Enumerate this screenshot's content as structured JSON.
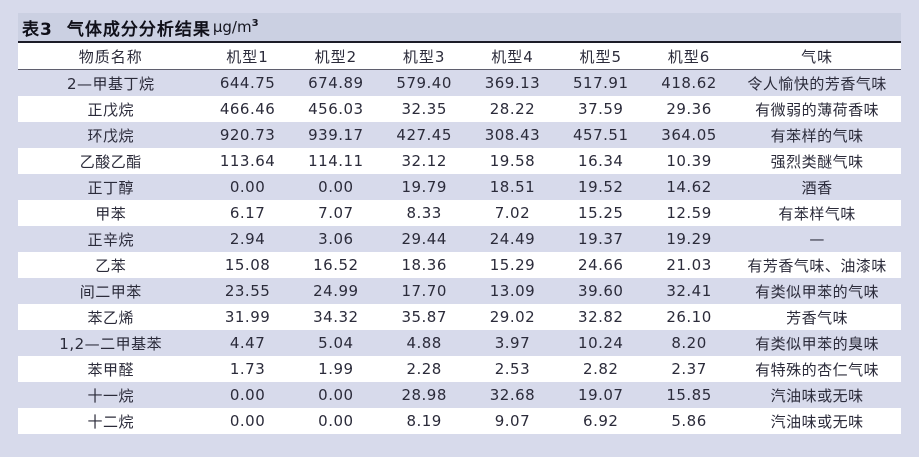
{
  "colors": {
    "page_background": "#d7daeb",
    "caption_band": "#cbd0e2",
    "row_stripe_lavender": "#d7daeb",
    "row_stripe_white": "#ffffff",
    "heavy_rule": "#1c1c28",
    "text": "#2b2b3a"
  },
  "table": {
    "caption": {
      "label": "表3",
      "title": "气体成分分析结果",
      "unit": "μg/m",
      "unit_sup": "3"
    },
    "columns": [
      "物质名称",
      "机型1",
      "机型2",
      "机型3",
      "机型4",
      "机型5",
      "机型6",
      "气味"
    ],
    "rows": [
      {
        "substance": "2—甲基丁烷",
        "values": [
          "644.75",
          "674.89",
          "579.40",
          "369.13",
          "517.91",
          "418.62"
        ],
        "odor": "令人愉快的芳香气味"
      },
      {
        "substance": "正戊烷",
        "values": [
          "466.46",
          "456.03",
          "32.35",
          "28.22",
          "37.59",
          "29.36"
        ],
        "odor": "有微弱的薄荷香味"
      },
      {
        "substance": "环戊烷",
        "values": [
          "920.73",
          "939.17",
          "427.45",
          "308.43",
          "457.51",
          "364.05"
        ],
        "odor": "有苯样的气味"
      },
      {
        "substance": "乙酸乙酯",
        "values": [
          "113.64",
          "114.11",
          "32.12",
          "19.58",
          "16.34",
          "10.39"
        ],
        "odor": "强烈类醚气味"
      },
      {
        "substance": "正丁醇",
        "values": [
          "0.00",
          "0.00",
          "19.79",
          "18.51",
          "19.52",
          "14.62"
        ],
        "odor": "酒香"
      },
      {
        "substance": "甲苯",
        "values": [
          "6.17",
          "7.07",
          "8.33",
          "7.02",
          "15.25",
          "12.59"
        ],
        "odor": "有苯样气味"
      },
      {
        "substance": "正辛烷",
        "values": [
          "2.94",
          "3.06",
          "29.44",
          "24.49",
          "19.37",
          "19.29"
        ],
        "odor": "—"
      },
      {
        "substance": "乙苯",
        "values": [
          "15.08",
          "16.52",
          "18.36",
          "15.29",
          "24.66",
          "21.03"
        ],
        "odor": "有芳香气味、油漆味"
      },
      {
        "substance": "间二甲苯",
        "values": [
          "23.55",
          "24.99",
          "17.70",
          "13.09",
          "39.60",
          "32.41"
        ],
        "odor": "有类似甲苯的气味"
      },
      {
        "substance": "苯乙烯",
        "values": [
          "31.99",
          "34.32",
          "35.87",
          "29.02",
          "32.82",
          "26.10"
        ],
        "odor": "芳香气味"
      },
      {
        "substance": "1,2—二甲基苯",
        "values": [
          "4.47",
          "5.04",
          "4.88",
          "3.97",
          "10.24",
          "8.20"
        ],
        "odor": "有类似甲苯的臭味"
      },
      {
        "substance": "苯甲醛",
        "values": [
          "1.73",
          "1.99",
          "2.28",
          "2.53",
          "2.82",
          "2.37"
        ],
        "odor": "有特殊的杏仁气味"
      },
      {
        "substance": "十一烷",
        "values": [
          "0.00",
          "0.00",
          "28.98",
          "32.68",
          "19.07",
          "15.85"
        ],
        "odor": "汽油味或无味"
      },
      {
        "substance": "十二烷",
        "values": [
          "0.00",
          "0.00",
          "8.19",
          "9.07",
          "6.92",
          "5.86"
        ],
        "odor": "汽油味或无味"
      }
    ]
  }
}
